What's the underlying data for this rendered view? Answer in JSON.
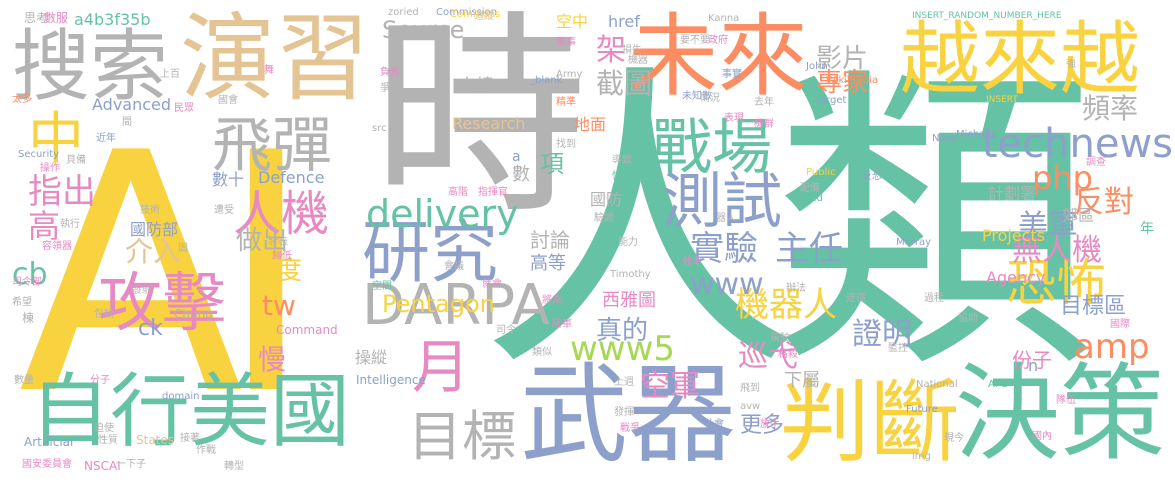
{
  "palette": {
    "yellow": "#f8d33f",
    "teal": "#66c2a5",
    "gray": "#b3b3b3",
    "slate": "#8da0cb",
    "tan": "#e5c494",
    "pink": "#e78ac3",
    "orange": "#fc8d62",
    "green": "#a6d854"
  },
  "words": [
    {
      "text": "AI",
      "color": "#f8d33f"
    },
    {
      "text": "人類",
      "color": "#66c2a5"
    },
    {
      "text": "時",
      "color": "#b3b3b3"
    },
    {
      "text": "演習",
      "color": "#e5c494"
    },
    {
      "text": "搜索",
      "color": "#b3b3b3"
    },
    {
      "text": "未來",
      "color": "#fc8d62"
    },
    {
      "text": "越來越",
      "color": "#f8d33f"
    },
    {
      "text": "武器",
      "color": "#8da0cb"
    },
    {
      "text": "自行",
      "color": "#66c2a5"
    },
    {
      "text": "美國",
      "color": "#66c2a5"
    },
    {
      "text": "判斷",
      "color": "#f8d33f"
    },
    {
      "text": "決策",
      "color": "#66c2a5"
    },
    {
      "text": "攻擊",
      "color": "#e78ac3"
    },
    {
      "text": "研究",
      "color": "#8da0cb"
    },
    {
      "text": "戰場",
      "color": "#66c2a5"
    },
    {
      "text": "測試",
      "color": "#8da0cb"
    },
    {
      "text": "中",
      "color": "#f8d33f"
    },
    {
      "text": "飛彈",
      "color": "#b3b3b3"
    },
    {
      "text": "人機",
      "color": "#e78ac3"
    },
    {
      "text": "DARPA",
      "color": "#b3b3b3"
    },
    {
      "text": "目標",
      "color": "#b3b3b3"
    },
    {
      "text": "月",
      "color": "#e78ac3"
    },
    {
      "text": "www5",
      "color": "#a6d854"
    },
    {
      "text": "technews",
      "color": "#8da0cb"
    },
    {
      "text": "delivery",
      "color": "#66c2a5"
    },
    {
      "text": "恐怖",
      "color": "#f8d33f"
    },
    {
      "text": "實驗",
      "color": "#8da0cb"
    },
    {
      "text": "主任",
      "color": "#8da0cb"
    },
    {
      "text": "機器人",
      "color": "#f8d33f"
    },
    {
      "text": "Pentagon",
      "color": "#f8d33f"
    },
    {
      "text": "Source",
      "color": "#b3b3b3"
    },
    {
      "text": "截圖",
      "color": "#b3b3b3"
    },
    {
      "text": "影片",
      "color": "#b3b3b3"
    },
    {
      "text": "專家",
      "color": "#fc8d62"
    },
    {
      "text": "頻率",
      "color": "#b3b3b3"
    },
    {
      "text": "無人機",
      "color": "#e78ac3"
    },
    {
      "text": "美軍",
      "color": "#8da0cb"
    },
    {
      "text": "反對",
      "color": "#fc8d62"
    },
    {
      "text": "php",
      "color": "#fc8d62"
    },
    {
      "text": "amp",
      "color": "#fc8d62"
    },
    {
      "text": "目標區",
      "color": "#8da0cb"
    },
    {
      "text": "證明",
      "color": "#8da0cb"
    },
    {
      "text": "巡弋",
      "color": "#e78ac3"
    },
    {
      "text": "空軍",
      "color": "#e78ac3"
    },
    {
      "text": "更多",
      "color": "#8da0cb"
    },
    {
      "text": "真的",
      "color": "#8da0cb"
    },
    {
      "text": "做出",
      "color": "#b3b3b3"
    },
    {
      "text": "速度",
      "color": "#f8d33f"
    },
    {
      "text": "介入",
      "color": "#e5c494"
    },
    {
      "text": "指出",
      "color": "#e78ac3"
    },
    {
      "text": "高",
      "color": "#e78ac3"
    },
    {
      "text": "cb",
      "color": "#66c2a5"
    },
    {
      "text": "tw",
      "color": "#fc8d62"
    },
    {
      "text": "慢",
      "color": "#e78ac3"
    },
    {
      "text": "操縱",
      "color": "#b3b3b3"
    },
    {
      "text": "www",
      "color": "#8da0cb"
    },
    {
      "text": "a4b3f35b",
      "color": "#66c2a5"
    },
    {
      "text": "Advanced",
      "color": "#8da0cb"
    },
    {
      "text": "Research",
      "color": "#e5c494"
    },
    {
      "text": "Defence",
      "color": "#8da0cb"
    },
    {
      "text": "國防部",
      "color": "#8da0cb"
    },
    {
      "text": "數十",
      "color": "#8da0cb"
    },
    {
      "text": "討論",
      "color": "#b3b3b3"
    },
    {
      "text": "高等",
      "color": "#8da0cb"
    },
    {
      "text": "大樓",
      "color": "#b3b3b3"
    },
    {
      "text": "架",
      "color": "#e78ac3"
    },
    {
      "text": "項",
      "color": "#66c2a5"
    },
    {
      "text": "數",
      "color": "#b3b3b3"
    },
    {
      "text": "a",
      "color": "#8da0cb"
    },
    {
      "text": "href",
      "color": "#8da0cb"
    },
    {
      "text": "空中",
      "color": "#f8d33f"
    },
    {
      "text": "地面",
      "color": "#fc8d62"
    },
    {
      "text": "國防",
      "color": "#b3b3b3"
    },
    {
      "text": "西雅圖",
      "color": "#e78ac3"
    },
    {
      "text": "計劃署",
      "color": "#b3b3b3"
    },
    {
      "text": "郊區",
      "color": "#b3b3b3"
    },
    {
      "text": "Projects",
      "color": "#f8d33f"
    },
    {
      "text": "Agency",
      "color": "#e78ac3"
    },
    {
      "text": "份子",
      "color": "#e78ac3"
    },
    {
      "text": "下屬",
      "color": "#b3b3b3"
    },
    {
      "text": "Intelligence",
      "color": "#8da0cb"
    },
    {
      "text": "Commission",
      "color": "#8da0cb"
    },
    {
      "text": "Artificial",
      "color": "#8da0cb"
    },
    {
      "text": "NSCAI",
      "color": "#e78ac3"
    },
    {
      "text": "Command",
      "color": "#e78ac3"
    },
    {
      "text": "Chung",
      "color": "#b3b3b3"
    },
    {
      "text": "zoried",
      "color": "#b3b3b3"
    },
    {
      "text": "Commons",
      "color": "#f8d33f"
    },
    {
      "text": "Kanna",
      "color": "#b3b3b3"
    },
    {
      "text": "INSERT_RANDOM_NUMBER_HERE",
      "color": "#66c2a5"
    },
    {
      "text": "Wikimedia",
      "color": "#fc8d62"
    },
    {
      "text": "INSERT",
      "color": "#f8d33f"
    },
    {
      "text": "John",
      "color": "#8da0cb"
    },
    {
      "text": "target",
      "color": "#8da0cb"
    },
    {
      "text": "Navy",
      "color": "#8da0cb"
    },
    {
      "text": "Michael",
      "color": "#8da0cb"
    },
    {
      "text": "Public",
      "color": "#f8d33f"
    },
    {
      "text": "United",
      "color": "#66c2a5"
    },
    {
      "text": "Murray",
      "color": "#8da0cb"
    },
    {
      "text": "National",
      "color": "#b3b3b3"
    },
    {
      "text": "AFC",
      "color": "#66c2a5"
    },
    {
      "text": "Future",
      "color": "#8da0cb"
    },
    {
      "text": "States",
      "color": "#e5c494"
    },
    {
      "text": "domain",
      "color": "#8da0cb"
    },
    {
      "text": "Security",
      "color": "#8da0cb"
    },
    {
      "text": "Army",
      "color": "#b3b3b3"
    },
    {
      "text": "_blank",
      "color": "#8da0cb"
    },
    {
      "text": "Timothy",
      "color": "#b3b3b3"
    },
    {
      "text": "src",
      "color": "#b3b3b3"
    },
    {
      "text": "img",
      "color": "#b3b3b3"
    },
    {
      "text": "avw",
      "color": "#b3b3b3"
    },
    {
      "text": "ck",
      "color": "#8da0cb"
    },
    {
      "text": "n",
      "color": "#8da0cb"
    },
    {
      "text": "年",
      "color": "#66c2a5"
    },
    {
      "text": "思考",
      "color": "#b3b3b3"
    },
    {
      "text": "數服",
      "color": "#e78ac3"
    },
    {
      "text": "追蹤",
      "color": "#e5c494"
    },
    {
      "text": "軍事",
      "color": "#e78ac3"
    },
    {
      "text": "損失",
      "color": "#b3b3b3"
    },
    {
      "text": "要不要",
      "color": "#b3b3b3"
    },
    {
      "text": "政府",
      "color": "#e78ac3"
    },
    {
      "text": "機器",
      "color": "#b3b3b3"
    },
    {
      "text": "上百",
      "color": "#b3b3b3"
    },
    {
      "text": "負責",
      "color": "#e78ac3"
    },
    {
      "text": "分工",
      "color": "#b3b3b3"
    },
    {
      "text": "事實",
      "color": "#8da0cb"
    },
    {
      "text": "太多",
      "color": "#fc8d62"
    },
    {
      "text": "國會",
      "color": "#b3b3b3"
    },
    {
      "text": "民眾",
      "color": "#e78ac3"
    },
    {
      "text": "未知數",
      "color": "#8da0cb"
    },
    {
      "text": "情況",
      "color": "#b3b3b3"
    },
    {
      "text": "爭論",
      "color": "#b3b3b3"
    },
    {
      "text": "精準",
      "color": "#fc8d62"
    },
    {
      "text": "表現",
      "color": "#e78ac3"
    },
    {
      "text": "去年",
      "color": "#b3b3b3"
    },
    {
      "text": "近年",
      "color": "#8da0cb"
    },
    {
      "text": "找到",
      "color": "#b3b3b3"
    },
    {
      "text": "機群",
      "color": "#e78ac3"
    },
    {
      "text": "操作",
      "color": "#e78ac3"
    },
    {
      "text": "貝備",
      "color": "#b3b3b3"
    },
    {
      "text": "導致",
      "color": "#b3b3b3"
    },
    {
      "text": "快速",
      "color": "#66c2a5"
    },
    {
      "text": "配備",
      "color": "#b3b3b3"
    },
    {
      "text": "反恐",
      "color": "#8da0cb"
    },
    {
      "text": "調查",
      "color": "#e78ac3"
    },
    {
      "text": "指揮官",
      "color": "#e78ac3"
    },
    {
      "text": "技術",
      "color": "#b3b3b3"
    },
    {
      "text": "執行",
      "color": "#b3b3b3"
    },
    {
      "text": "遭受",
      "color": "#b3b3b3"
    },
    {
      "text": "容領器",
      "color": "#e78ac3"
    },
    {
      "text": "發表",
      "color": "#b3b3b3"
    },
    {
      "text": "歸低",
      "color": "#e78ac3"
    },
    {
      "text": "驗證",
      "color": "#b3b3b3"
    },
    {
      "text": "能力",
      "color": "#b3b3b3"
    },
    {
      "text": "會議",
      "color": "#b3b3b3"
    },
    {
      "text": "效率",
      "color": "#e78ac3"
    },
    {
      "text": "就會",
      "color": "#e78ac3"
    },
    {
      "text": "司令部",
      "color": "#e78ac3"
    },
    {
      "text": "發射",
      "color": "#b3b3b3"
    },
    {
      "text": "包括",
      "color": "#b3b3b3"
    },
    {
      "text": "希望",
      "color": "#b3b3b3"
    },
    {
      "text": "棟",
      "color": "#b3b3b3"
    },
    {
      "text": "空間",
      "color": "#66c2a5"
    },
    {
      "text": "將來",
      "color": "#e78ac3"
    },
    {
      "text": "陸軍",
      "color": "#e78ac3"
    },
    {
      "text": "類似",
      "color": "#b3b3b3"
    },
    {
      "text": "駕駛",
      "color": "#b3b3b3"
    },
    {
      "text": "格殺",
      "color": "#e78ac3"
    },
    {
      "text": "協助",
      "color": "#b3b3b3"
    },
    {
      "text": "過程",
      "color": "#b3b3b3"
    },
    {
      "text": "國際",
      "color": "#e78ac3"
    },
    {
      "text": "數量",
      "color": "#b3b3b3"
    },
    {
      "text": "分子",
      "color": "#e78ac3"
    },
    {
      "text": "上週",
      "color": "#b3b3b3"
    },
    {
      "text": "飛到",
      "color": "#b3b3b3"
    },
    {
      "text": "發揮",
      "color": "#b3b3b3"
    },
    {
      "text": "戰爭",
      "color": "#e78ac3"
    },
    {
      "text": "社會",
      "color": "#8da0cb"
    },
    {
      "text": "放手",
      "color": "#e78ac3"
    },
    {
      "text": "隊伍",
      "color": "#e78ac3"
    },
    {
      "text": "現今",
      "color": "#b3b3b3"
    },
    {
      "text": "國內",
      "color": "#e78ac3"
    },
    {
      "text": "迫使",
      "color": "#b3b3b3"
    },
    {
      "text": "作戰",
      "color": "#b3b3b3"
    },
    {
      "text": "接著",
      "color": "#b3b3b3"
    },
    {
      "text": "性質",
      "color": "#b3b3b3"
    },
    {
      "text": "國安委員會",
      "color": "#e78ac3"
    },
    {
      "text": "一下子",
      "color": "#b3b3b3"
    },
    {
      "text": "轉型",
      "color": "#b3b3b3"
    },
    {
      "text": "辦法",
      "color": "#b3b3b3"
    },
    {
      "text": "途徑",
      "color": "#b3b3b3"
    },
    {
      "text": "監控",
      "color": "#b3b3b3"
    },
    {
      "text": "強",
      "color": "#b3b3b3"
    },
    {
      "text": "司令",
      "color": "#b3b3b3"
    },
    {
      "text": "固",
      "color": "#b3b3b3"
    },
    {
      "text": "舞",
      "color": "#e78ac3"
    },
    {
      "text": "間",
      "color": "#b3b3b3"
    },
    {
      "text": "高階",
      "color": "#e78ac3"
    },
    {
      "text": "器人",
      "color": "#b3b3b3"
    }
  ]
}
